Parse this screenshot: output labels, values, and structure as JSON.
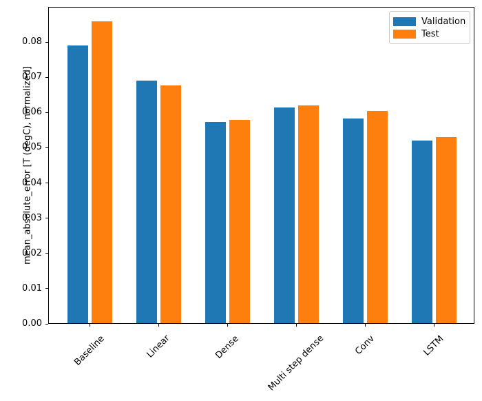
{
  "chart_data": {
    "type": "bar",
    "categories": [
      "Baseline",
      "Linear",
      "Dense",
      "Multi step dense",
      "Conv",
      "LSTM"
    ],
    "series": [
      {
        "name": "Validation",
        "color": "#1f77b4",
        "values": [
          0.079,
          0.0691,
          0.0573,
          0.0615,
          0.0583,
          0.0521
        ]
      },
      {
        "name": "Test",
        "color": "#ff7f0e",
        "values": [
          0.0858,
          0.0676,
          0.0579,
          0.062,
          0.0604,
          0.0531
        ]
      }
    ],
    "xlabel": "",
    "ylabel": "mean_absolute_error [T (degC), normalized]",
    "ylim": [
      0,
      0.09
    ],
    "yticks": [
      "0.00",
      "0.01",
      "0.02",
      "0.03",
      "0.04",
      "0.05",
      "0.06",
      "0.07",
      "0.08"
    ],
    "xtick_rotation_deg": 45,
    "grid": false,
    "legend": {
      "position": "upper right"
    },
    "axis_color": "#000000",
    "text_color": "#000000",
    "background_color": "#ffffff"
  }
}
